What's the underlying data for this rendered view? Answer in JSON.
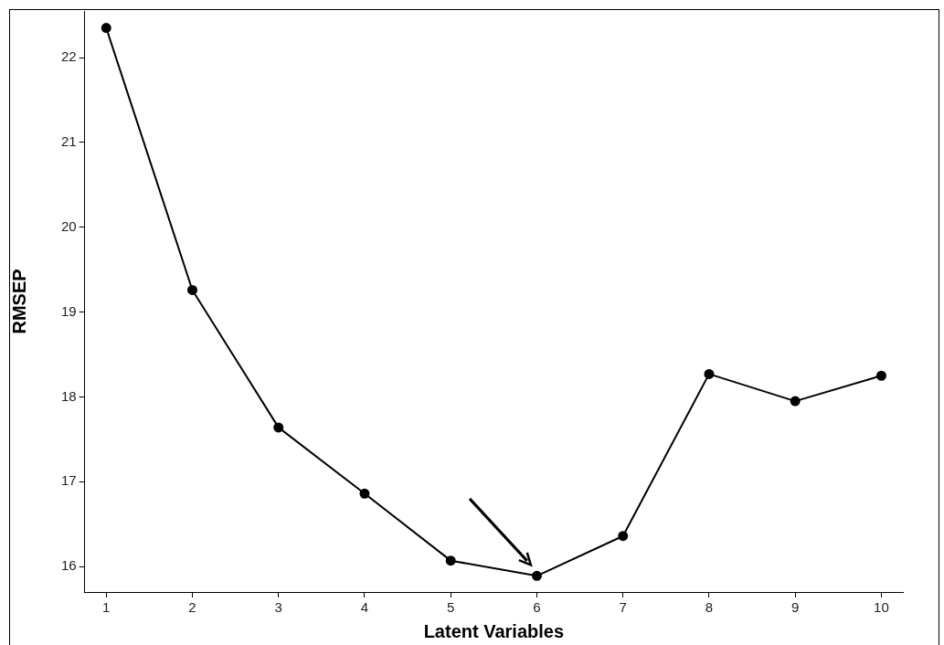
{
  "chart_data": {
    "type": "line",
    "xlabel": "Latent Variables",
    "ylabel": "RMSEP",
    "x": [
      1,
      2,
      3,
      4,
      5,
      6,
      7,
      8,
      9,
      10
    ],
    "series": [
      {
        "color": "#000000",
        "values": [
          22.35,
          19.26,
          17.64,
          16.86,
          16.07,
          15.89,
          16.36,
          18.27,
          17.95,
          18.25
        ]
      }
    ],
    "xlim": [
      0.75,
      10.25
    ],
    "xticks": [
      1,
      2,
      3,
      4,
      5,
      6,
      7,
      8,
      9,
      10
    ],
    "ylim": [
      15.7,
      22.55
    ],
    "yticks": [
      16,
      17,
      18,
      19,
      20,
      21,
      22
    ],
    "grid": false,
    "legend": false,
    "marker": "circle",
    "line_style": "solid"
  }
}
